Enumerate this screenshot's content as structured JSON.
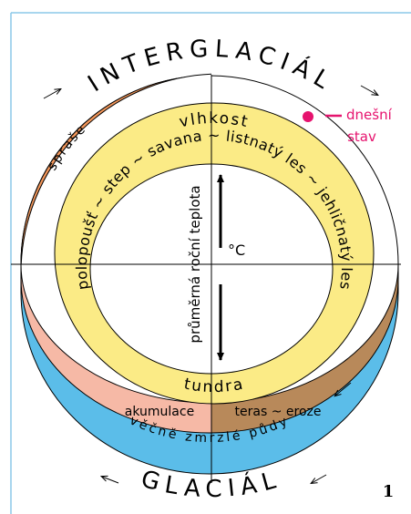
{
  "header": {
    "title": "INTERGLACIÁL"
  },
  "footer": {
    "title": "GLACIÁL",
    "figure_number": "1"
  },
  "labels": {
    "loess": "spraše",
    "humidity": "vlhkost",
    "current_state": [
      "dnešní",
      "stav"
    ],
    "vegetation": "polopoušť ~ step ~ savana ~ listnatý les ~ jehličnatý les",
    "temperature": "průměrná roční teplota",
    "unit": "°C",
    "tundra": "tundra",
    "accumulation": "akumulace",
    "terraces": "teras ~ eroze",
    "permafrost": "věčně zmrzlé půdy"
  }
}
